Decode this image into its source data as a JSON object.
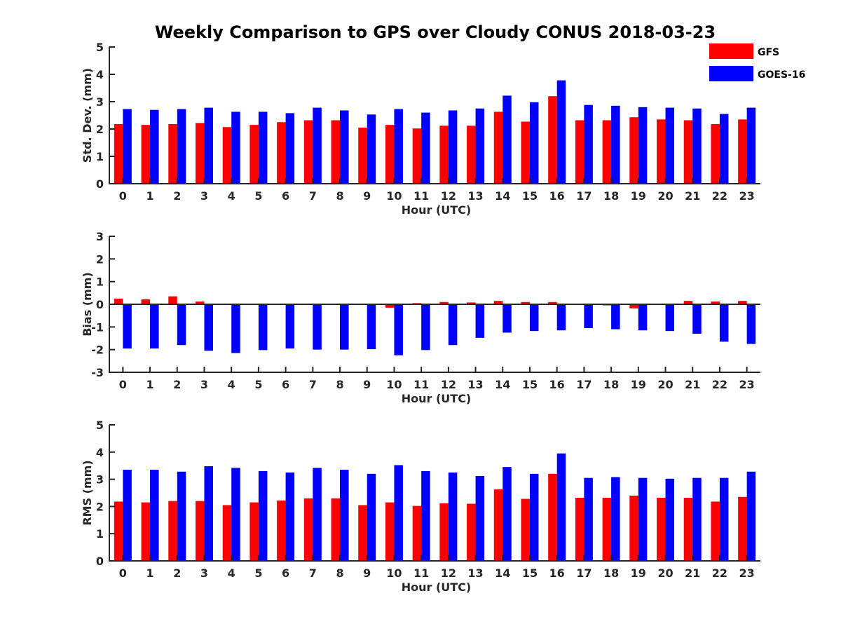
{
  "title": "Weekly Comparison to GPS over Cloudy CONUS 2018-03-23",
  "colors": {
    "GFS": "#ff0000",
    "GOES-16": "#0000ff",
    "axis": "#262626"
  },
  "legend": {
    "position": "top-right",
    "entries": [
      "GFS",
      "GOES-16"
    ]
  },
  "chart_data": [
    {
      "type": "bar",
      "categories": [
        "0",
        "1",
        "2",
        "3",
        "4",
        "5",
        "6",
        "7",
        "8",
        "9",
        "10",
        "11",
        "12",
        "13",
        "14",
        "15",
        "16",
        "17",
        "18",
        "19",
        "20",
        "21",
        "22",
        "23"
      ],
      "series": [
        {
          "name": "GFS",
          "values": [
            2.18,
            2.15,
            2.18,
            2.22,
            2.07,
            2.15,
            2.25,
            2.32,
            2.32,
            2.05,
            2.15,
            2.02,
            2.12,
            2.12,
            2.63,
            2.27,
            3.2,
            2.32,
            2.32,
            2.43,
            2.35,
            2.32,
            2.18,
            2.35
          ]
        },
        {
          "name": "GOES-16",
          "values": [
            2.73,
            2.7,
            2.73,
            2.78,
            2.63,
            2.63,
            2.58,
            2.78,
            2.68,
            2.53,
            2.73,
            2.6,
            2.68,
            2.75,
            3.22,
            2.98,
            3.78,
            2.88,
            2.85,
            2.8,
            2.78,
            2.75,
            2.55,
            2.78
          ]
        }
      ],
      "xlabel": "Hour (UTC)",
      "ylabel": "Std. Dev. (mm)",
      "ylim": [
        0,
        5
      ],
      "yticks": [
        "0",
        "1",
        "2",
        "3",
        "4",
        "5"
      ],
      "grid": false
    },
    {
      "type": "bar",
      "categories": [
        "0",
        "1",
        "2",
        "3",
        "4",
        "5",
        "6",
        "7",
        "8",
        "9",
        "10",
        "11",
        "12",
        "13",
        "14",
        "15",
        "16",
        "17",
        "18",
        "19",
        "20",
        "21",
        "22",
        "23"
      ],
      "series": [
        {
          "name": "GFS",
          "values": [
            0.25,
            0.22,
            0.35,
            0.12,
            0.0,
            0.0,
            0.03,
            0.0,
            0.0,
            0.0,
            -0.15,
            0.05,
            0.1,
            0.08,
            0.15,
            0.1,
            0.1,
            0.0,
            -0.05,
            -0.18,
            0.0,
            0.15,
            0.12,
            0.15
          ]
        },
        {
          "name": "GOES-16",
          "values": [
            -1.95,
            -1.95,
            -1.8,
            -2.05,
            -2.15,
            -2.02,
            -1.95,
            -2.0,
            -2.0,
            -1.98,
            -2.25,
            -2.02,
            -1.8,
            -1.48,
            -1.25,
            -1.18,
            -1.15,
            -1.05,
            -1.1,
            -1.15,
            -1.18,
            -1.3,
            -1.65,
            -1.75
          ]
        }
      ],
      "xlabel": "Hour (UTC)",
      "ylabel": "Bias (mm)",
      "ylim": [
        -3,
        3
      ],
      "yticks": [
        "-3",
        "-2",
        "-1",
        "0",
        "1",
        "2",
        "3"
      ],
      "grid": false
    },
    {
      "type": "bar",
      "categories": [
        "0",
        "1",
        "2",
        "3",
        "4",
        "5",
        "6",
        "7",
        "8",
        "9",
        "10",
        "11",
        "12",
        "13",
        "14",
        "15",
        "16",
        "17",
        "18",
        "19",
        "20",
        "21",
        "22",
        "23"
      ],
      "series": [
        {
          "name": "GFS",
          "values": [
            2.18,
            2.15,
            2.2,
            2.2,
            2.05,
            2.15,
            2.22,
            2.3,
            2.3,
            2.05,
            2.15,
            2.02,
            2.12,
            2.1,
            2.63,
            2.28,
            3.2,
            2.32,
            2.32,
            2.4,
            2.32,
            2.32,
            2.18,
            2.35
          ]
        },
        {
          "name": "GOES-16",
          "values": [
            3.35,
            3.35,
            3.28,
            3.48,
            3.42,
            3.3,
            3.25,
            3.42,
            3.35,
            3.2,
            3.52,
            3.3,
            3.25,
            3.12,
            3.45,
            3.2,
            3.95,
            3.05,
            3.08,
            3.05,
            3.02,
            3.05,
            3.05,
            3.28
          ]
        }
      ],
      "xlabel": "Hour (UTC)",
      "ylabel": "RMS (mm)",
      "ylim": [
        0,
        5
      ],
      "yticks": [
        "0",
        "1",
        "2",
        "3",
        "4",
        "5"
      ],
      "grid": false
    }
  ]
}
